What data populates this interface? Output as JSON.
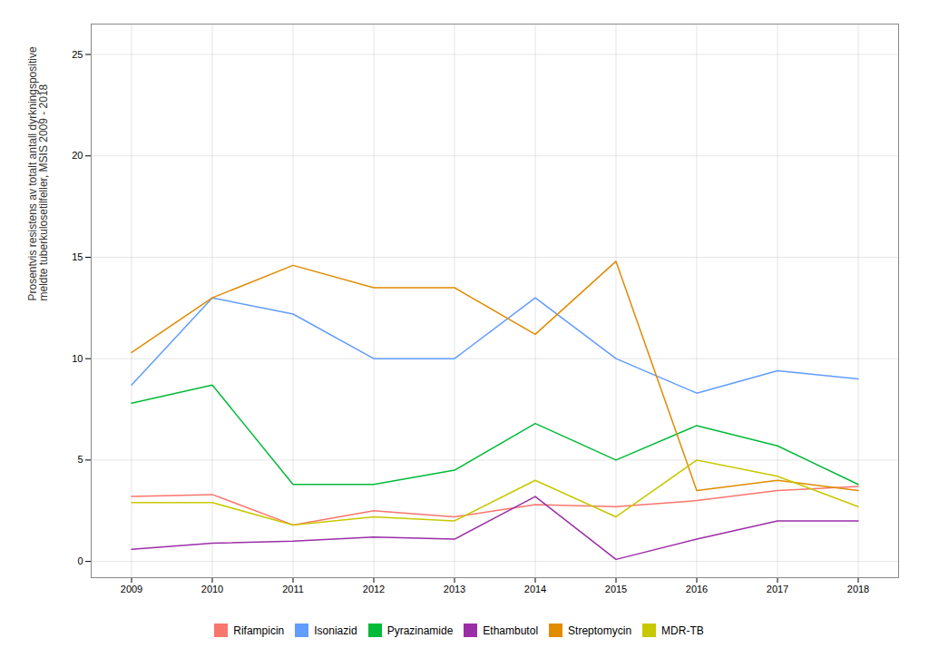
{
  "chart_data": {
    "type": "line",
    "ylabel": "Prosentvis resistens av totalt antall dyrkningspositive\nmeldte tuberkulosetilfeller, MSIS 2009 - 2018",
    "x": [
      2009,
      2010,
      2011,
      2012,
      2013,
      2014,
      2015,
      2016,
      2017,
      2018
    ],
    "series": [
      {
        "name": "Rifampicin",
        "color": "#F8766D",
        "values": [
          3.2,
          3.3,
          1.8,
          2.5,
          2.2,
          2.8,
          2.7,
          3.0,
          3.5,
          3.7
        ]
      },
      {
        "name": "Isoniazid",
        "color": "#619CFF",
        "values": [
          8.7,
          13.0,
          12.2,
          10.0,
          10.0,
          13.0,
          10.0,
          8.3,
          9.4,
          9.0
        ]
      },
      {
        "name": "Pyrazinamide",
        "color": "#00BA38",
        "values": [
          7.8,
          8.7,
          3.8,
          3.8,
          4.5,
          6.8,
          5.0,
          6.7,
          5.7,
          3.8
        ]
      },
      {
        "name": "Ethambutol",
        "color": "#9B2EA6",
        "values": [
          0.6,
          0.9,
          1.0,
          1.2,
          1.1,
          3.2,
          0.1,
          1.1,
          2.0,
          2.0
        ]
      },
      {
        "name": "Streptomycin",
        "color": "#E08B00",
        "values": [
          10.3,
          13.0,
          14.6,
          13.5,
          13.5,
          11.2,
          14.8,
          3.5,
          4.0,
          3.5
        ]
      },
      {
        "name": "MDR-TB",
        "color": "#C8C800",
        "values": [
          2.9,
          2.9,
          1.8,
          2.2,
          2.0,
          4.0,
          2.2,
          5.0,
          4.2,
          2.7
        ]
      }
    ],
    "xlim": [
      2008.5,
      2018.5
    ],
    "xticks": [
      2009,
      2010,
      2011,
      2012,
      2013,
      2014,
      2015,
      2016,
      2017,
      2018
    ],
    "ylim": [
      -0.8,
      26.5
    ],
    "yticks": [
      0,
      5,
      10,
      15,
      20,
      25
    ],
    "grid": true,
    "legend": "bottom"
  }
}
